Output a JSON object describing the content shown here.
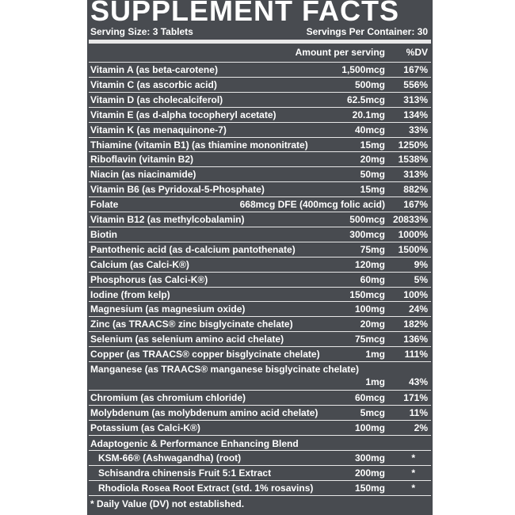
{
  "title": "SUPPLEMENT FACTS",
  "serving_size": "Serving Size: 3 Tablets",
  "servings_per_container": "Servings Per Container: 30",
  "columns": [
    "Amount per serving",
    "%DV"
  ],
  "rows": [
    [
      "Vitamin A (as beta-carotene)",
      "1,500mcg",
      "167%"
    ],
    [
      "Vitamin C (as ascorbic acid)",
      "500mg",
      "556%"
    ],
    [
      "Vitamin D (as cholecalciferol)",
      "62.5mcg",
      "313%"
    ],
    [
      "Vitamin E (as d-alpha tocopheryl acetate)",
      "20.1mg",
      "134%"
    ],
    [
      "Vitamin K (as menaquinone-7)",
      "40mcg",
      "33%"
    ],
    [
      "Thiamine (vitamin B1) (as thiamine mononitrate)",
      "15mg",
      "1250%"
    ],
    [
      "Riboflavin (vitamin B2)",
      "20mg",
      "1538%"
    ],
    [
      "Niacin (as niacinamide)",
      "50mg",
      "313%"
    ],
    [
      "Vitamin B6 (as Pyridoxal-5-Phosphate)",
      "15mg",
      "882%"
    ],
    [
      "Folate",
      "668mcg DFE (400mcg folic acid)",
      "167%"
    ],
    [
      "Vitamin B12 (as methylcobalamin)",
      "500mcg",
      "20833%"
    ],
    [
      "Biotin",
      "300mcg",
      "1000%"
    ],
    [
      "Pantothenic acid (as d-calcium pantothenate)",
      "75mg",
      "1500%"
    ],
    [
      "Calcium (as Calci-K®)",
      "120mg",
      "9%"
    ],
    [
      "Phosphorus (as Calci-K®)",
      "60mg",
      "5%"
    ],
    [
      "Iodine (from kelp)",
      "150mcg",
      "100%"
    ],
    [
      "Magnesium (as magnesium oxide)",
      "100mg",
      "24%"
    ],
    [
      "Zinc (as TRAACS® zinc bisglycinate chelate)",
      "20mg",
      "182%"
    ],
    [
      "Selenium (as selenium amino acid chelate)",
      "75mcg",
      "136%"
    ],
    [
      "Copper (as TRAACS® copper bisglycinate chelate)",
      "1mg",
      "111%"
    ],
    [
      "Manganese (as TRAACS® manganese bisglycinate chelate)",
      "1mg",
      "43%"
    ],
    [
      "Chromium (as chromium chloride)",
      "60mcg",
      "171%"
    ],
    [
      "Molybdenum (as molybdenum amino acid chelate)",
      "5mcg",
      "11%"
    ],
    [
      "Potassium (as Calci-K®)",
      "100mg",
      "2%"
    ]
  ],
  "blend": {
    "title": "Adaptogenic & Performance Enhancing Blend",
    "rows": [
      [
        "KSM-66® (Ashwagandha) (root)",
        "300mg",
        "*"
      ],
      [
        "Schisandra chinensis Fruit 5:1 Extract",
        "200mg",
        "*"
      ],
      [
        "Rhodiola Rosea Root Extract (std. 1% rosavins)",
        "150mg",
        "*"
      ]
    ]
  },
  "footnote": "* Daily Value (DV) not established."
}
